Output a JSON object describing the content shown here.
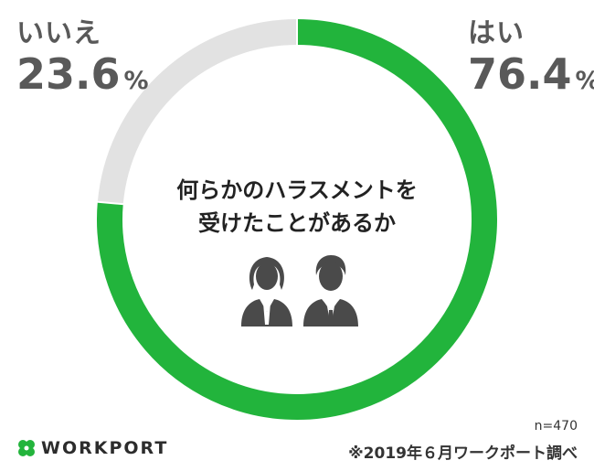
{
  "chart_data": {
    "type": "pie",
    "style": "donut",
    "title": "何らかのハラスメントを受けたことがあるか",
    "title_lines": [
      "何らかのハラスメントを",
      "受けたことがあるか"
    ],
    "categories": [
      "はい",
      "いいえ"
    ],
    "values": [
      76.4,
      23.6
    ],
    "unit": "%",
    "value_labels": [
      "76.4",
      "23.6"
    ],
    "colors": [
      "#22b43c",
      "#e2e2e2"
    ],
    "sample_size": "n=470",
    "source": "※2019年６月ワークポート調べ"
  },
  "logo": {
    "text": "WORKPORT",
    "color": "#23b43c"
  },
  "icons": [
    "woman-user-icon",
    "man-user-icon",
    "clover-logo-icon"
  ]
}
